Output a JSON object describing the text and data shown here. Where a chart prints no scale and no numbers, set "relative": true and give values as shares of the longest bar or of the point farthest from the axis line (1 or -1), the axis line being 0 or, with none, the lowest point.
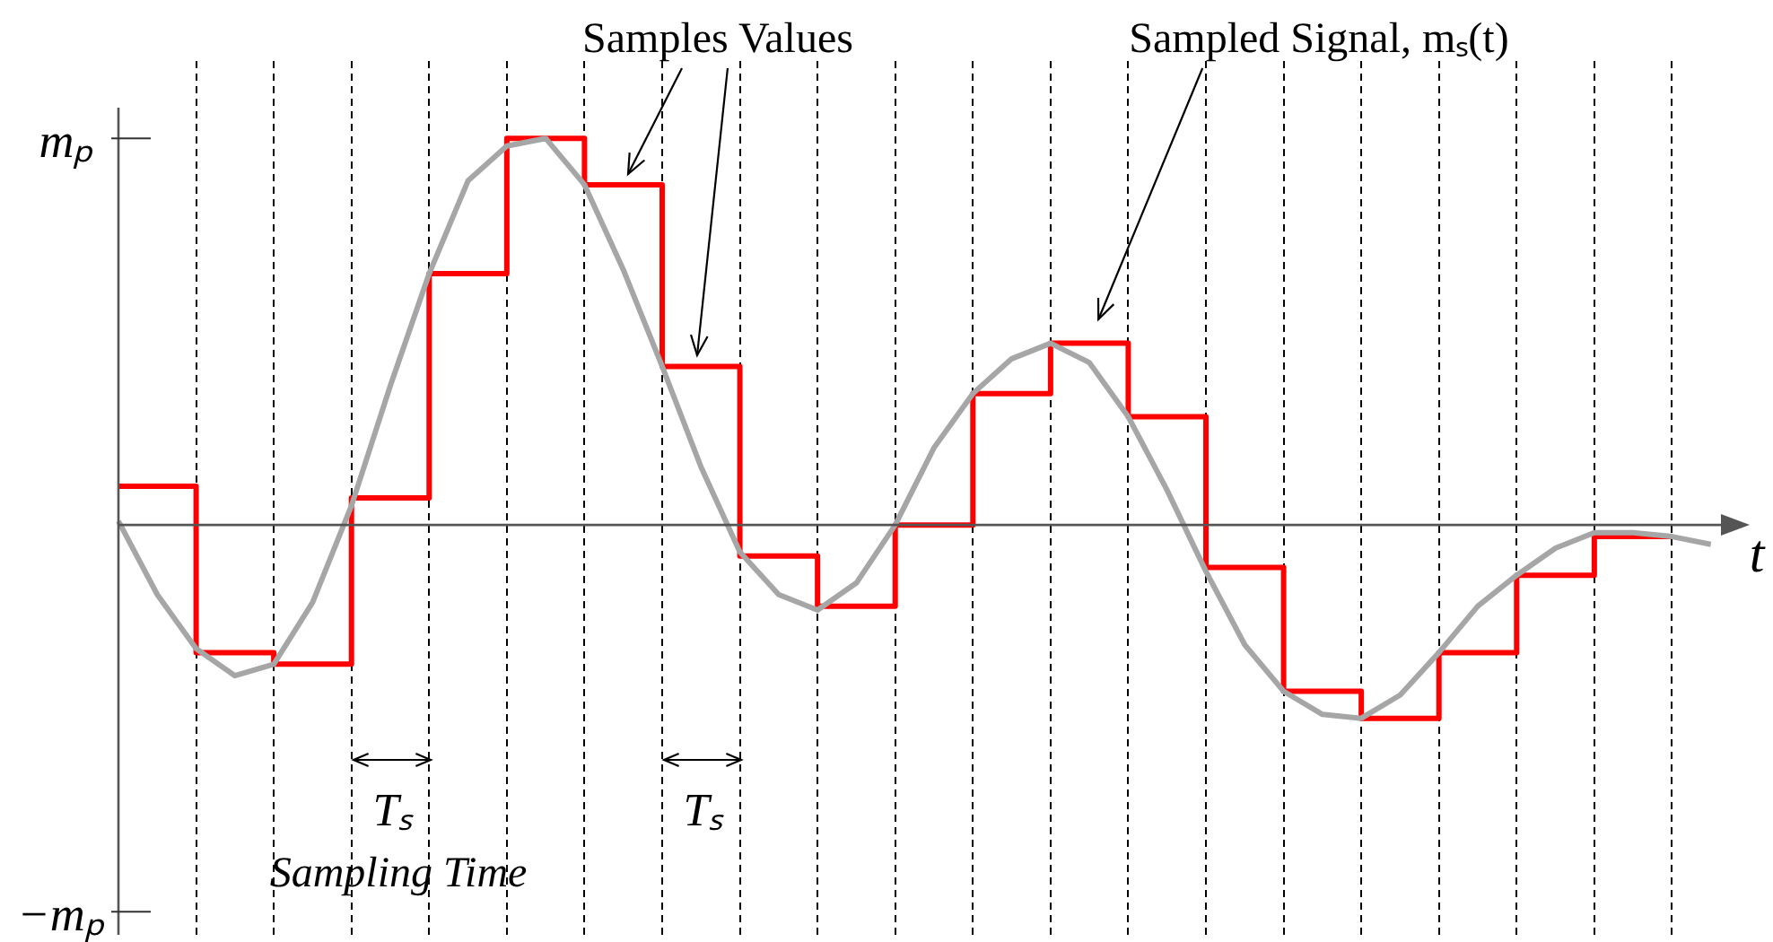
{
  "chart_data": {
    "type": "line",
    "xlabel": "t",
    "categories": [
      null,
      null,
      null,
      null,
      null,
      null,
      null,
      null,
      null,
      null,
      null,
      null,
      null,
      null,
      null,
      null,
      null,
      null,
      null,
      null,
      null,
      null,
      null,
      null,
      null,
      null,
      null,
      null,
      null,
      null,
      null,
      null,
      null,
      null,
      null,
      null,
      null,
      null,
      null,
      null,
      null,
      null,
      null
    ],
    "relative": true,
    "grid": "x",
    "legend": false,
    "marker": "none",
    "line_style": "solid",
    "series": [
      {
        "color": "#a6a6a6",
        "values": [
          0.01,
          -0.18,
          -0.32,
          -0.39,
          -0.36,
          -0.2,
          0.05,
          0.36,
          0.65,
          0.89,
          0.98,
          1.0,
          0.88,
          0.66,
          0.41,
          0.15,
          -0.07,
          -0.18,
          -0.22,
          -0.15,
          0,
          0.2,
          0.34,
          0.43,
          0.47,
          0.42,
          0.28,
          0.09,
          -0.12,
          -0.31,
          -0.43,
          -0.49,
          -0.5,
          -0.44,
          -0.33,
          -0.21,
          -0.13,
          -0.06,
          -0.02,
          -0.02,
          -0.03,
          -0.05,
          null
        ]
      },
      {
        "type": "step",
        "color": "#ff0000",
        "values": [
          0.1,
          null,
          -0.33,
          null,
          -0.36,
          null,
          0.07,
          null,
          0.65,
          null,
          1.0,
          null,
          0.88,
          null,
          0.41,
          null,
          -0.08,
          null,
          -0.21,
          null,
          0,
          null,
          0.34,
          null,
          0.47,
          null,
          0.28,
          null,
          -0.11,
          null,
          -0.43,
          null,
          -0.5,
          null,
          -0.33,
          null,
          -0.13,
          null,
          -0.03,
          null,
          -0.03,
          null,
          null
        ]
      }
    ],
    "annotations": [
      "Samples Values",
      "Sampled Signal, mₛ(t)",
      "Tₛ",
      "Tₛ",
      "Sampling Time",
      "mₚ",
      "−mₚ"
    ]
  }
}
